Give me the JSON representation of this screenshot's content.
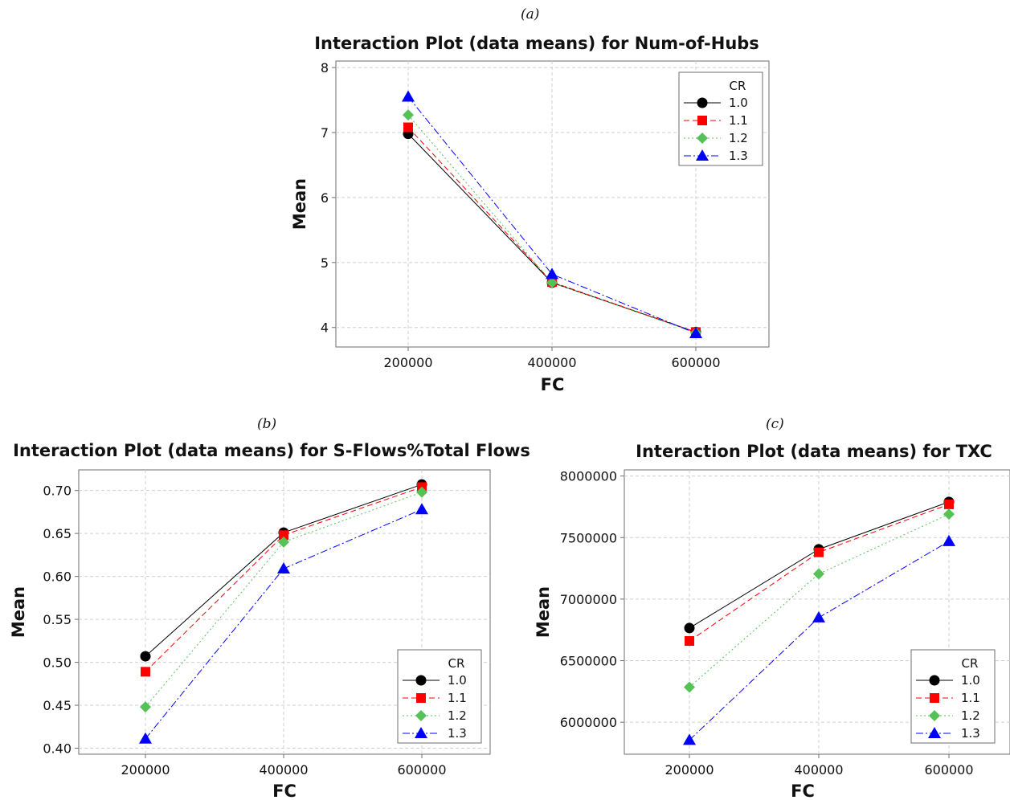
{
  "figure": {
    "panel_labels": [
      "(a)",
      "(b)",
      "(c)"
    ]
  },
  "chart_data": [
    {
      "type": "line",
      "title": "Interaction Plot (data means) for Num-of-Hubs",
      "xlabel": "FC",
      "ylabel": "Mean",
      "x": [
        200000,
        400000,
        600000
      ],
      "xticks": [
        "200000",
        "400000",
        "600000"
      ],
      "yticks": [
        "4",
        "5",
        "6",
        "7",
        "8"
      ],
      "ylim": [
        3.7,
        8.1
      ],
      "grid": true,
      "legend": {
        "title": "CR",
        "placement": "top-right"
      },
      "series": [
        {
          "name": "1.0",
          "values": [
            6.98,
            4.69,
            3.93
          ],
          "color": "#000000",
          "marker": "circle",
          "dash": "none"
        },
        {
          "name": "1.1",
          "values": [
            7.08,
            4.7,
            3.93
          ],
          "color": "#ff0000",
          "marker": "square",
          "dash": "dashed"
        },
        {
          "name": "1.2",
          "values": [
            7.27,
            4.69,
            3.92
          ],
          "color": "#55c255",
          "marker": "diamond",
          "dash": "dotted"
        },
        {
          "name": "1.3",
          "values": [
            7.55,
            4.82,
            3.91
          ],
          "color": "#0000ff",
          "marker": "triangle",
          "dash": "dashdot"
        }
      ]
    },
    {
      "type": "line",
      "title": "Interaction Plot (data means) for S-Flows%Total Flows",
      "xlabel": "FC",
      "ylabel": "Mean",
      "x": [
        200000,
        400000,
        600000
      ],
      "xticks": [
        "200000",
        "400000",
        "600000"
      ],
      "yticks": [
        "0.40",
        "0.45",
        "0.50",
        "0.55",
        "0.60",
        "0.65",
        "0.70"
      ],
      "ylim": [
        0.393,
        0.724
      ],
      "grid": true,
      "legend": {
        "title": "CR",
        "placement": "bottom-right"
      },
      "series": [
        {
          "name": "1.0",
          "values": [
            0.507,
            0.651,
            0.707
          ],
          "color": "#000000",
          "marker": "circle",
          "dash": "none"
        },
        {
          "name": "1.1",
          "values": [
            0.489,
            0.648,
            0.704
          ],
          "color": "#ff0000",
          "marker": "square",
          "dash": "dashed"
        },
        {
          "name": "1.2",
          "values": [
            0.448,
            0.64,
            0.698
          ],
          "color": "#55c255",
          "marker": "diamond",
          "dash": "dotted"
        },
        {
          "name": "1.3",
          "values": [
            0.411,
            0.609,
            0.678
          ],
          "color": "#0000ff",
          "marker": "triangle",
          "dash": "dashdot"
        }
      ]
    },
    {
      "type": "line",
      "title": "Interaction Plot (data means) for TXC",
      "xlabel": "FC",
      "ylabel": "Mean",
      "x": [
        200000,
        400000,
        600000
      ],
      "xticks": [
        "200000",
        "400000",
        "600000"
      ],
      "yticks": [
        "6000000",
        "6500000",
        "7000000",
        "7500000",
        "8000000"
      ],
      "ylim": [
        5740000,
        8050000
      ],
      "grid": true,
      "legend": {
        "title": "CR",
        "placement": "bottom-right"
      },
      "series": [
        {
          "name": "1.0",
          "values": [
            6765000,
            7405000,
            7790000
          ],
          "color": "#000000",
          "marker": "circle",
          "dash": "none"
        },
        {
          "name": "1.1",
          "values": [
            6660000,
            7380000,
            7770000
          ],
          "color": "#ff0000",
          "marker": "square",
          "dash": "dashed"
        },
        {
          "name": "1.2",
          "values": [
            6285000,
            7205000,
            7690000
          ],
          "color": "#55c255",
          "marker": "diamond",
          "dash": "dotted"
        },
        {
          "name": "1.3",
          "values": [
            5855000,
            6850000,
            7470000
          ],
          "color": "#0000ff",
          "marker": "triangle",
          "dash": "dashdot"
        }
      ]
    }
  ]
}
